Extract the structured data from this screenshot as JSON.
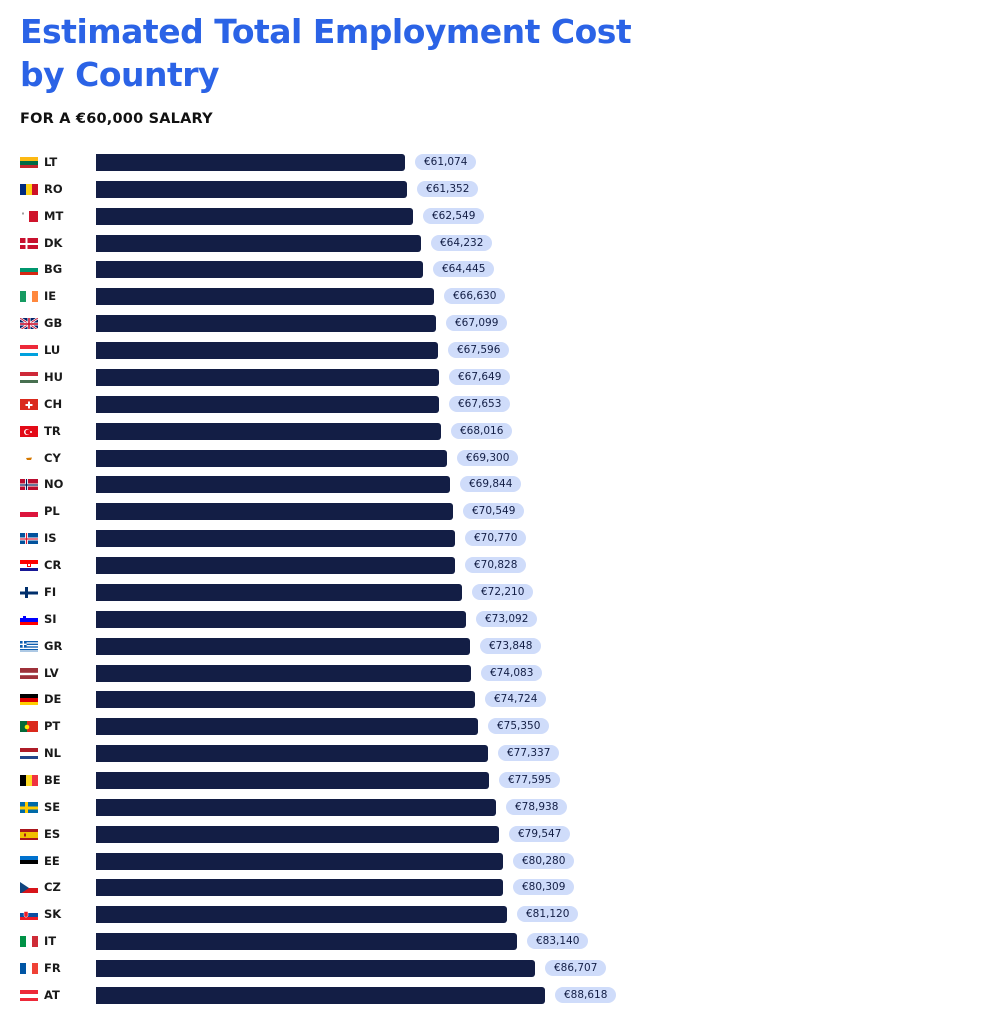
{
  "colors": {
    "title": "#2b63e6",
    "bar": "#131e45",
    "label_bg": "#cfdcfa"
  },
  "chart_data": {
    "type": "bar",
    "orientation": "horizontal",
    "title": "Estimated Total Employment Cost by Country",
    "subtitle": "FOR A €60,000 SALARY",
    "currency_prefix": "€",
    "categories": [
      "LT",
      "RO",
      "MT",
      "DK",
      "BG",
      "IE",
      "GB",
      "LU",
      "HU",
      "CH",
      "TR",
      "CY",
      "NO",
      "PL",
      "IS",
      "CR",
      "FI",
      "SI",
      "GR",
      "LV",
      "DE",
      "PT",
      "NL",
      "BE",
      "SE",
      "ES",
      "EE",
      "CZ",
      "SK",
      "IT",
      "FR",
      "AT"
    ],
    "values": [
      61074,
      61352,
      62549,
      64232,
      64445,
      66630,
      67099,
      67596,
      67649,
      67653,
      68016,
      69300,
      69844,
      70549,
      70770,
      70828,
      72210,
      73092,
      73848,
      74083,
      74724,
      75350,
      77337,
      77595,
      78938,
      79547,
      80280,
      80309,
      81120,
      83140,
      86707,
      88618
    ],
    "labels": [
      "€61,074",
      "€61,352",
      "€62,549",
      "€64,232",
      "€64,445",
      "€66,630",
      "€67,099",
      "€67,596",
      "€67,649",
      "€67,653",
      "€68,016",
      "€69,300",
      "€69,844",
      "€70,549",
      "€70,770",
      "€70,828",
      "€72,210",
      "€73,092",
      "€73,848",
      "€74,083",
      "€74,724",
      "€75,350",
      "€77,337",
      "€77,595",
      "€78,938",
      "€79,547",
      "€80,280",
      "€80,309",
      "€81,120",
      "€83,140",
      "€86,707",
      "€88,618"
    ],
    "flags": [
      "lithuania-flag-icon",
      "romania-flag-icon",
      "malta-flag-icon",
      "denmark-flag-icon",
      "bulgaria-flag-icon",
      "ireland-flag-icon",
      "uk-flag-icon",
      "luxembourg-flag-icon",
      "hungary-flag-icon",
      "switzerland-flag-icon",
      "turkey-flag-icon",
      "cyprus-flag-icon",
      "norway-flag-icon",
      "poland-flag-icon",
      "iceland-flag-icon",
      "croatia-flag-icon",
      "finland-flag-icon",
      "slovenia-flag-icon",
      "greece-flag-icon",
      "latvia-flag-icon",
      "germany-flag-icon",
      "portugal-flag-icon",
      "netherlands-flag-icon",
      "belgium-flag-icon",
      "sweden-flag-icon",
      "spain-flag-icon",
      "estonia-flag-icon",
      "czechia-flag-icon",
      "slovakia-flag-icon",
      "italy-flag-icon",
      "france-flag-icon",
      "austria-flag-icon"
    ],
    "xlim": [
      0,
      88618
    ],
    "grid": false,
    "legend": "none"
  }
}
